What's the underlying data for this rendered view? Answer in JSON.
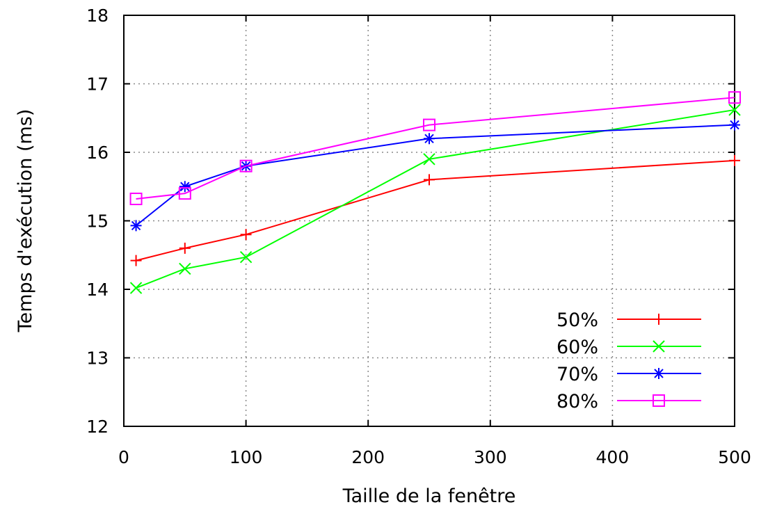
{
  "chart_data": {
    "type": "line",
    "xlabel": "Taille de la fenêtre",
    "ylabel": "Temps d'exécution (ms)",
    "xlim": [
      0,
      500
    ],
    "ylim": [
      12,
      18
    ],
    "xticks": [
      0,
      100,
      200,
      300,
      400,
      500
    ],
    "yticks": [
      12,
      13,
      14,
      15,
      16,
      17,
      18
    ],
    "xtick_labels": [
      "0",
      "100",
      "200",
      "300",
      "400",
      "500"
    ],
    "ytick_labels": [
      "12",
      "13",
      "14",
      "15",
      "16",
      "17",
      "18"
    ],
    "grid": true,
    "legend_position": "bottom-right",
    "series": [
      {
        "name": "50%",
        "color": "#ff0000",
        "marker": "plus",
        "x": [
          10,
          50,
          100,
          250,
          500
        ],
        "y": [
          14.42,
          14.6,
          14.8,
          15.6,
          15.88
        ]
      },
      {
        "name": "60%",
        "color": "#00ff00",
        "marker": "x",
        "x": [
          10,
          50,
          100,
          250,
          500
        ],
        "y": [
          14.02,
          14.3,
          14.47,
          15.9,
          16.62
        ]
      },
      {
        "name": "70%",
        "color": "#0000ff",
        "marker": "star",
        "x": [
          10,
          50,
          100,
          250,
          500
        ],
        "y": [
          14.93,
          15.5,
          15.8,
          16.2,
          16.4
        ]
      },
      {
        "name": "80%",
        "color": "#ff00ff",
        "marker": "square",
        "x": [
          10,
          50,
          100,
          250,
          500
        ],
        "y": [
          15.32,
          15.4,
          15.8,
          16.4,
          16.8
        ]
      }
    ]
  }
}
